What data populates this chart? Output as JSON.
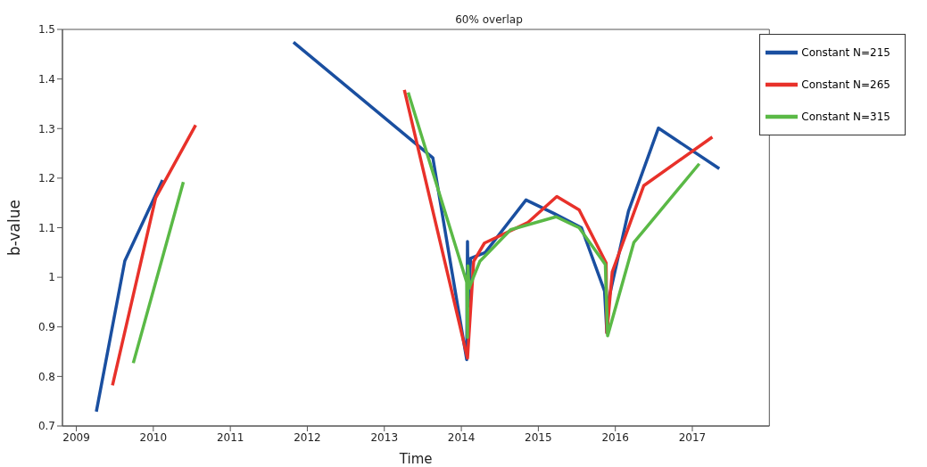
{
  "chart_data": {
    "type": "line",
    "title": "60% overlap",
    "xlabel": "Time",
    "ylabel": "b-value",
    "xlim": [
      2008.82,
      2018
    ],
    "xticks": [
      2009,
      2010,
      2011,
      2012,
      2013,
      2014,
      2015,
      2016,
      2017
    ],
    "ylim": [
      0.7,
      1.5
    ],
    "yticks": [
      0.7,
      0.8,
      0.9,
      1,
      1.1,
      1.2,
      1.3,
      1.4,
      1.5
    ],
    "grid": false,
    "legend": "top right",
    "line_style": "solid",
    "marker": "none",
    "series": [
      {
        "name": "Constant N=215",
        "color": "#1a4fa0",
        "x": [
          2009.26,
          2009.63,
          2010.12,
          2011,
          2011.82,
          2013.63,
          2014.07,
          2014.08,
          2014.09,
          2014.12,
          2014.31,
          2014.84,
          2015.2,
          2015.56,
          2015.86,
          2015.89,
          2015.92,
          2016.17,
          2016.56,
          2017.35
        ],
        "values": [
          0.729,
          1.033,
          1.196,
          null,
          1.474,
          1.241,
          0.834,
          1.072,
          0.942,
          1.038,
          1.05,
          1.156,
          1.129,
          1.1,
          0.972,
          0.888,
          0.96,
          1.133,
          1.301,
          1.219
        ]
      },
      {
        "name": "Constant N=265",
        "color": "#e8312a",
        "x": [
          2009.47,
          2010.03,
          2010.55,
          2012,
          2013.26,
          2014.08,
          2014.16,
          2014.3,
          2014.86,
          2015.24,
          2015.53,
          2015.88,
          2015.89,
          2015.96,
          2016.37,
          2017.26
        ],
        "values": [
          0.782,
          1.16,
          1.307,
          null,
          1.378,
          0.837,
          1.032,
          1.069,
          1.11,
          1.163,
          1.136,
          1.029,
          0.888,
          1.011,
          1.185,
          1.283
        ]
      },
      {
        "name": "Constant N=315",
        "color": "#5ab946",
        "x": [
          2009.74,
          2010.39,
          2012,
          2013.31,
          2014.07,
          2014.08,
          2014.085,
          2014.1,
          2014.24,
          2014.64,
          2015.23,
          2015.53,
          2015.87,
          2015.9,
          2016.24,
          2017.09
        ],
        "values": [
          0.827,
          1.192,
          null,
          1.373,
          0.99,
          0.879,
          1.023,
          0.978,
          1.032,
          1.096,
          1.122,
          1.1,
          1.026,
          0.882,
          1.07,
          1.229
        ]
      }
    ]
  }
}
